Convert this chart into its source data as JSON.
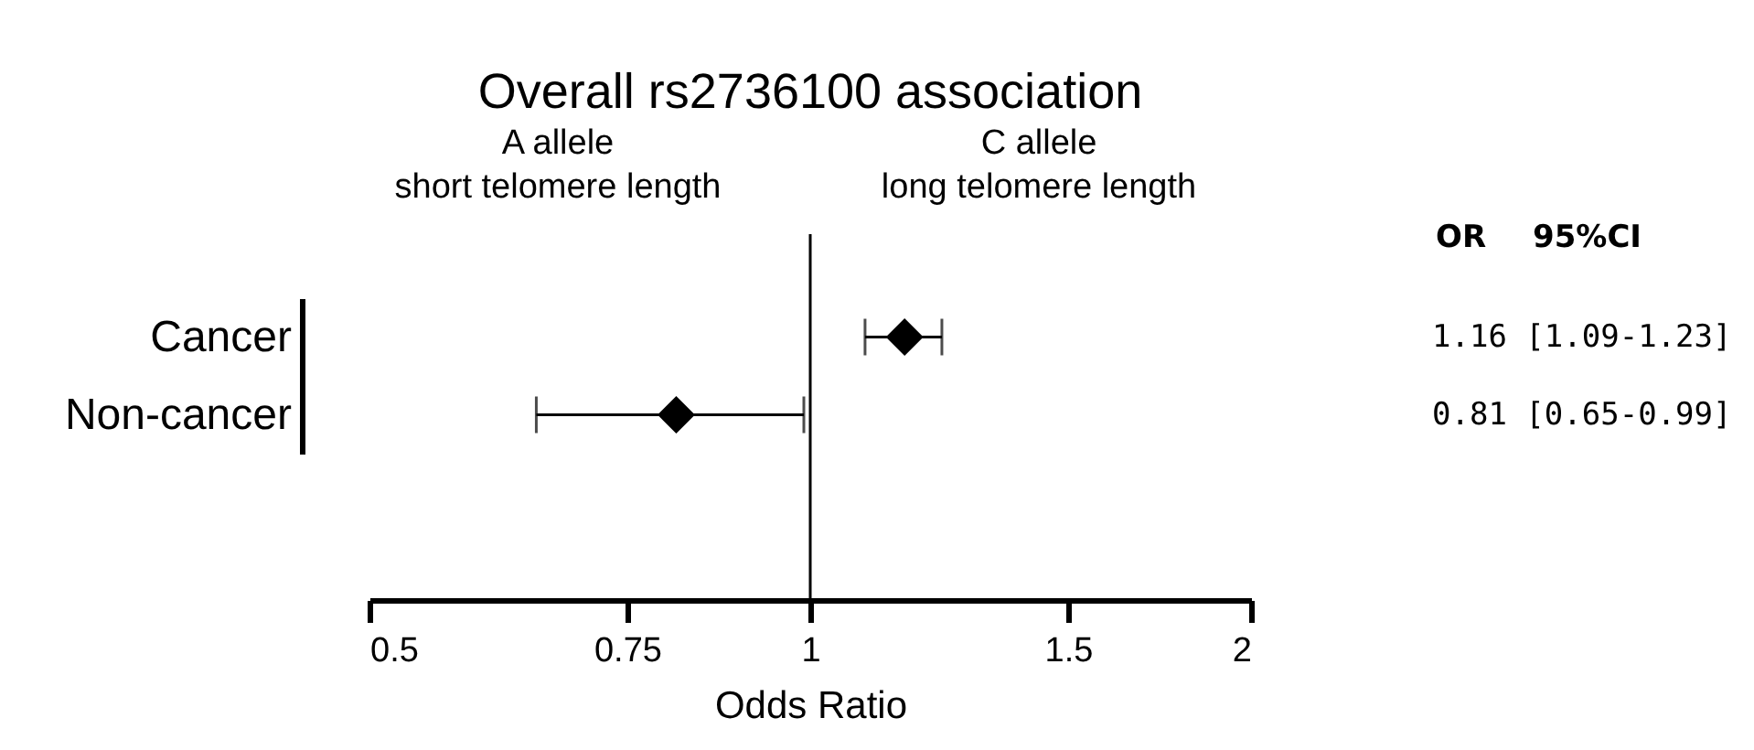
{
  "chart_data": {
    "type": "scatter",
    "title": "Overall rs2736100 association",
    "xlabel": "Odds Ratio",
    "categories": [
      "Cancer",
      "Non-cancer"
    ],
    "values": [
      1.16,
      0.81
    ],
    "errors": [
      [
        1.09,
        1.23
      ],
      [
        0.65,
        0.99
      ]
    ],
    "value_labels": [
      "1.16 [1.09-1.23]",
      "0.81 [0.65-0.99]"
    ],
    "color": "#000000",
    "marker": "diamond",
    "orientation": "horizontal",
    "log": "x",
    "xlim": [
      0.5,
      2
    ],
    "xticks": [
      0.5,
      0.75,
      1,
      1.5,
      2
    ],
    "ref_lines": [
      {
        "axis": "x",
        "value": 1,
        "color": "#000000"
      }
    ],
    "annotations": [
      "A allele\nshort telomere length",
      "C allele\nlong telomere length",
      "OR",
      "95%CI"
    ]
  }
}
